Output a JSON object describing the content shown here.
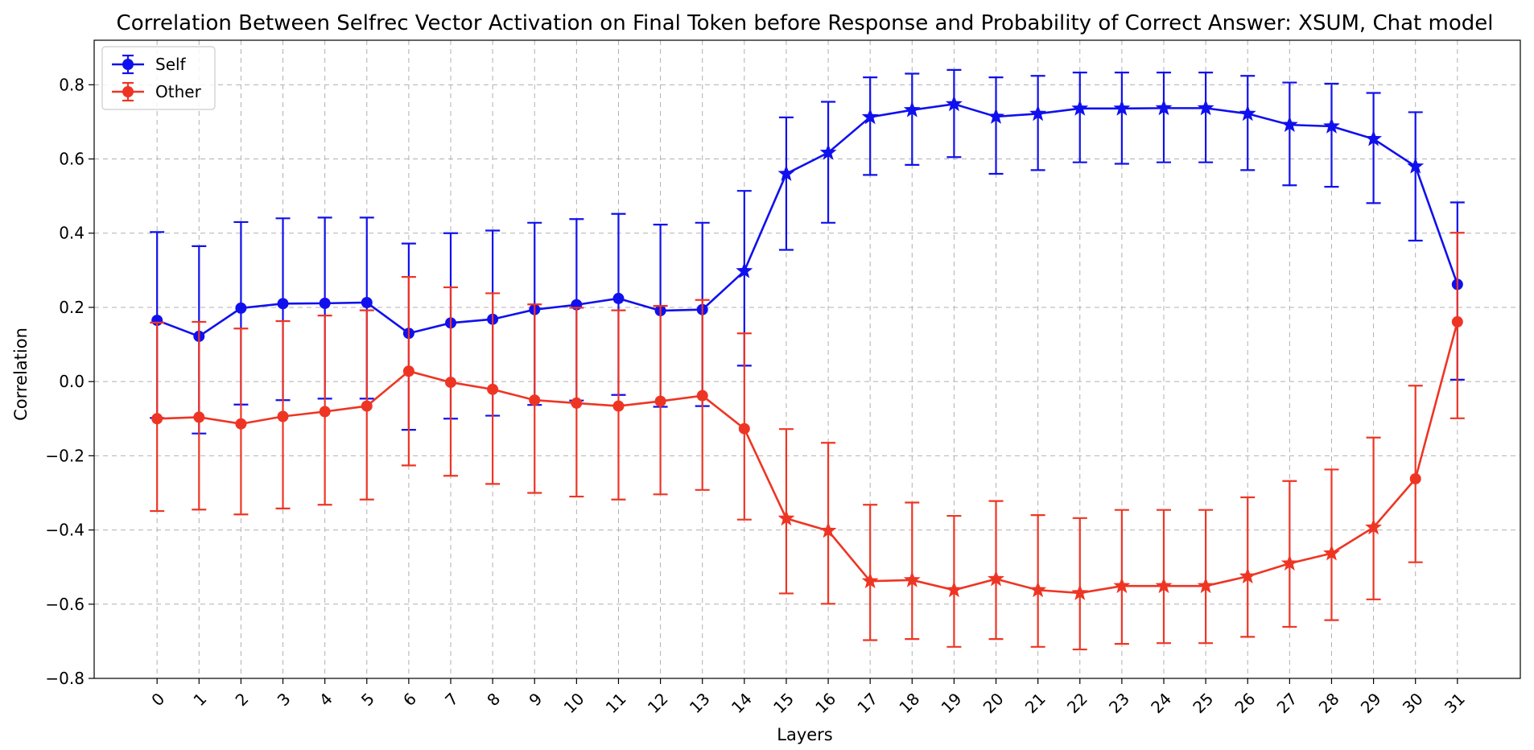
{
  "chart_data": {
    "type": "line",
    "title": "Correlation Between Selfrec Vector Activation on Final Token before Response and Probability of Correct Answer: XSUM, Chat model",
    "xlabel": "Layers",
    "ylabel": "Correlation",
    "ylim": [
      -0.8,
      0.92
    ],
    "yticks": [
      -0.8,
      -0.6,
      -0.4,
      -0.2,
      0.0,
      0.2,
      0.4,
      0.6,
      0.8
    ],
    "ytick_labels": [
      "−0.8",
      "−0.6",
      "−0.4",
      "−0.2",
      "0.0",
      "0.2",
      "0.4",
      "0.6",
      "0.8"
    ],
    "x": [
      0,
      1,
      2,
      3,
      4,
      5,
      6,
      7,
      8,
      9,
      10,
      11,
      12,
      13,
      14,
      15,
      16,
      17,
      18,
      19,
      20,
      21,
      22,
      23,
      24,
      25,
      26,
      27,
      28,
      29,
      30,
      31
    ],
    "xtick_labels": [
      "0",
      "1",
      "2",
      "3",
      "4",
      "5",
      "6",
      "7",
      "8",
      "9",
      "10",
      "11",
      "12",
      "13",
      "14",
      "15",
      "16",
      "17",
      "18",
      "19",
      "20",
      "21",
      "22",
      "23",
      "24",
      "25",
      "26",
      "27",
      "28",
      "29",
      "30",
      "31"
    ],
    "grid": true,
    "legend_position": "top-left",
    "significance_marker": "star marker = significant layer (estimated), circle otherwise",
    "series": [
      {
        "name": "Self",
        "color": "#1010ee",
        "values": [
          0.165,
          0.122,
          0.198,
          0.21,
          0.211,
          0.213,
          0.13,
          0.158,
          0.168,
          0.194,
          0.207,
          0.224,
          0.191,
          0.194,
          0.298,
          0.56,
          0.617,
          0.713,
          0.732,
          0.748,
          0.714,
          0.722,
          0.736,
          0.736,
          0.737,
          0.737,
          0.722,
          0.692,
          0.688,
          0.654,
          0.58,
          0.262
        ],
        "err_low": [
          -0.098,
          -0.14,
          -0.062,
          -0.05,
          -0.046,
          -0.046,
          -0.13,
          -0.1,
          -0.092,
          -0.063,
          -0.051,
          -0.036,
          -0.068,
          -0.066,
          0.043,
          0.355,
          0.428,
          0.557,
          0.584,
          0.605,
          0.56,
          0.57,
          0.591,
          0.587,
          0.591,
          0.591,
          0.57,
          0.529,
          0.525,
          0.481,
          0.38,
          0.005
        ],
        "err_high": [
          0.403,
          0.365,
          0.43,
          0.44,
          0.442,
          0.442,
          0.372,
          0.4,
          0.407,
          0.428,
          0.438,
          0.452,
          0.423,
          0.428,
          0.514,
          0.712,
          0.754,
          0.82,
          0.83,
          0.84,
          0.82,
          0.824,
          0.833,
          0.833,
          0.833,
          0.833,
          0.824,
          0.806,
          0.803,
          0.778,
          0.726,
          0.483
        ],
        "markers": [
          "o",
          "o",
          "o",
          "o",
          "o",
          "o",
          "o",
          "o",
          "o",
          "o",
          "o",
          "o",
          "o",
          "o",
          "*",
          "*",
          "*",
          "*",
          "*",
          "*",
          "*",
          "*",
          "*",
          "*",
          "*",
          "*",
          "*",
          "*",
          "*",
          "*",
          "*",
          "o"
        ]
      },
      {
        "name": "Other",
        "color": "#ee3524",
        "values": [
          -0.1,
          -0.096,
          -0.114,
          -0.094,
          -0.081,
          -0.066,
          0.028,
          -0.002,
          -0.021,
          -0.05,
          -0.058,
          -0.066,
          -0.053,
          -0.038,
          -0.127,
          -0.369,
          -0.402,
          -0.538,
          -0.535,
          -0.562,
          -0.532,
          -0.562,
          -0.57,
          -0.551,
          -0.551,
          -0.551,
          -0.525,
          -0.49,
          -0.463,
          -0.393,
          -0.262,
          0.161
        ],
        "err_low": [
          -0.349,
          -0.345,
          -0.358,
          -0.342,
          -0.332,
          -0.318,
          -0.226,
          -0.254,
          -0.276,
          -0.3,
          -0.31,
          -0.318,
          -0.304,
          -0.292,
          -0.372,
          -0.571,
          -0.599,
          -0.697,
          -0.694,
          -0.715,
          -0.694,
          -0.715,
          -0.722,
          -0.707,
          -0.705,
          -0.705,
          -0.688,
          -0.661,
          -0.643,
          -0.587,
          -0.487,
          -0.099
        ],
        "err_high": [
          0.159,
          0.161,
          0.143,
          0.163,
          0.178,
          0.192,
          0.282,
          0.254,
          0.238,
          0.208,
          0.199,
          0.192,
          0.204,
          0.22,
          0.13,
          -0.128,
          -0.165,
          -0.332,
          -0.326,
          -0.362,
          -0.322,
          -0.36,
          -0.368,
          -0.346,
          -0.346,
          -0.346,
          -0.312,
          -0.268,
          -0.237,
          -0.151,
          -0.011,
          0.401
        ],
        "markers": [
          "o",
          "o",
          "o",
          "o",
          "o",
          "o",
          "o",
          "o",
          "o",
          "o",
          "o",
          "o",
          "o",
          "o",
          "o",
          "*",
          "*",
          "*",
          "*",
          "*",
          "*",
          "*",
          "*",
          "*",
          "*",
          "*",
          "*",
          "*",
          "*",
          "*",
          "o",
          "o"
        ]
      }
    ]
  }
}
